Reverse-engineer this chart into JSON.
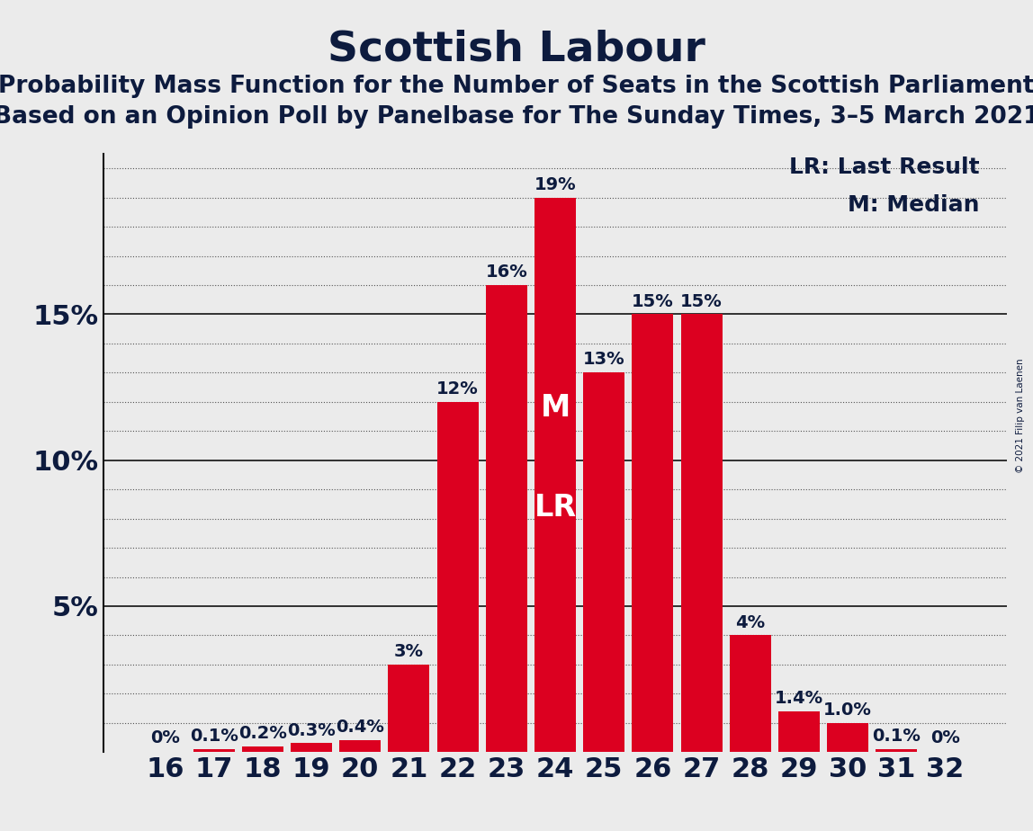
{
  "title": "Scottish Labour",
  "subtitle1": "Probability Mass Function for the Number of Seats in the Scottish Parliament",
  "subtitle2": "Based on an Opinion Poll by Panelbase for The Sunday Times, 3–5 March 2021",
  "copyright": "© 2021 Filip van Laenen",
  "legend_lr": "LR: Last Result",
  "legend_m": "M: Median",
  "categories": [
    16,
    17,
    18,
    19,
    20,
    21,
    22,
    23,
    24,
    25,
    26,
    27,
    28,
    29,
    30,
    31,
    32
  ],
  "values": [
    0.0,
    0.1,
    0.2,
    0.3,
    0.4,
    3.0,
    12.0,
    16.0,
    19.0,
    13.0,
    15.0,
    15.0,
    4.0,
    1.4,
    1.0,
    0.1,
    0.0
  ],
  "labels": [
    "0%",
    "0.1%",
    "0.2%",
    "0.3%",
    "0.4%",
    "3%",
    "12%",
    "16%",
    "19%",
    "13%",
    "15%",
    "15%",
    "4%",
    "1.4%",
    "1.0%",
    "0.1%",
    "0%"
  ],
  "bar_color": "#DC0020",
  "background_color": "#EBEBEB",
  "text_color": "#0D1B3E",
  "median_seat": 24,
  "lr_seat": 24,
  "title_fontsize": 34,
  "subtitle_fontsize": 19,
  "tick_fontsize": 22,
  "label_fontsize": 14,
  "legend_fontsize": 18,
  "mlr_fontsize": 24,
  "ylim": [
    0,
    20.5
  ],
  "yticks": [
    0,
    5,
    10,
    15
  ],
  "ytick_labels": [
    "",
    "5%",
    "10%",
    "15%"
  ],
  "solid_yticks": [
    5,
    10,
    15
  ],
  "dotted_interval": 1,
  "grid_color": "#555555",
  "solid_grid_color": "#111111"
}
